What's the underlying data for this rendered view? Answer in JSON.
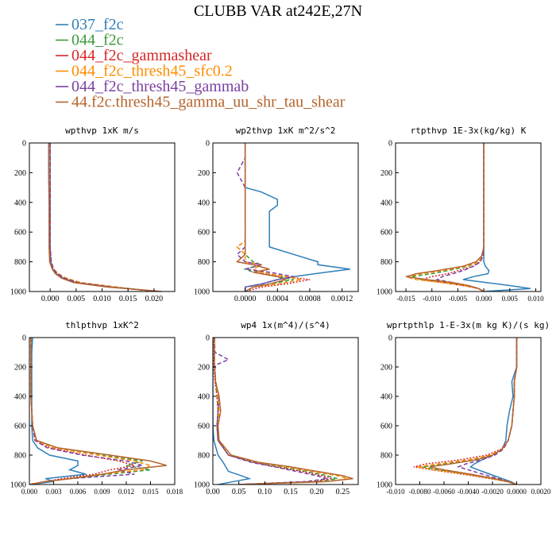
{
  "title": "CLUBB VAR at242E,27N",
  "legend": [
    {
      "label": "037_f2c",
      "color": "#2f7fb8",
      "dash": "solid"
    },
    {
      "label": "044_f2c",
      "color": "#3a9a3a",
      "dash": "dashed"
    },
    {
      "label": "044_f2c_gammashear",
      "color": "#d62728",
      "dash": "dotted"
    },
    {
      "label": "044_f2c_thresh45_sfc0.2",
      "color": "#ff8c00",
      "dash": "dashed"
    },
    {
      "label": "044_f2c_thresh45_gammab",
      "color": "#7b3fa0",
      "dash": "dashed"
    },
    {
      "label": "44.f2c.thresh45_gamma_uu_shr_tau_shear",
      "color": "#b5652e",
      "dash": "solid"
    }
  ],
  "chart_data": [
    {
      "type": "line",
      "title": "wpthvp  1xK m/s",
      "xlim": [
        -0.004,
        0.024
      ],
      "ylim": [
        0,
        1000
      ],
      "xticks": [
        "0.000",
        "0.005",
        "0.010",
        "0.015",
        "0.020"
      ],
      "xtick_values": [
        0,
        0.005,
        0.01,
        0.015,
        0.02
      ],
      "yticks": [
        "0",
        "200",
        "400",
        "600",
        "800",
        "1000"
      ],
      "y": [
        0,
        200,
        400,
        600,
        700,
        800,
        850,
        880,
        910,
        940,
        970,
        1000
      ],
      "series": [
        {
          "values": [
            0.0,
            0.0,
            0.0,
            0.0,
            0.0,
            0.0001,
            0.0005,
            0.0012,
            0.0025,
            0.005,
            0.012,
            0.021
          ]
        },
        {
          "values": [
            0.0,
            0.0,
            0.0,
            0.0,
            0.0,
            0.0002,
            0.0007,
            0.0015,
            0.003,
            0.0058,
            0.0125,
            0.02
          ]
        },
        {
          "values": [
            0.0,
            0.0,
            0.0,
            0.0,
            0.0,
            0.0002,
            0.0006,
            0.0014,
            0.0028,
            0.0055,
            0.012,
            0.0205
          ]
        },
        {
          "values": [
            0.0,
            0.0,
            0.0,
            0.0,
            0.0,
            0.0002,
            0.0007,
            0.0016,
            0.0031,
            0.006,
            0.013,
            0.0195
          ]
        },
        {
          "values": [
            0.0,
            0.0,
            0.0,
            0.0,
            0.0,
            0.0002,
            0.0006,
            0.0014,
            0.0027,
            0.0053,
            0.0118,
            0.0208
          ]
        },
        {
          "values": [
            -0.0003,
            -0.0003,
            -0.0002,
            -0.0002,
            -0.0002,
            -0.0001,
            0.0004,
            0.001,
            0.0022,
            0.0045,
            0.011,
            0.0215
          ]
        }
      ]
    },
    {
      "type": "line",
      "title": "wp2thvp  1xK m^2/s^2",
      "xlim": [
        -0.0004,
        0.0014
      ],
      "ylim": [
        0,
        1000
      ],
      "xticks": [
        "0.0000",
        "0.0004",
        "0.0008",
        "0.0012"
      ],
      "xtick_values": [
        0,
        0.0004,
        0.0008,
        0.0012
      ],
      "yticks": [
        "0",
        "200",
        "400",
        "600",
        "800",
        "1000"
      ],
      "y": [
        0,
        100,
        200,
        300,
        330,
        380,
        420,
        460,
        500,
        540,
        580,
        620,
        660,
        700,
        750,
        800,
        820,
        850,
        870,
        900,
        920,
        950,
        970,
        1000
      ],
      "series": [
        {
          "values": [
            0.0,
            0.0,
            0.0,
            0.0,
            0.0002,
            0.0004,
            0.0004,
            0.0003,
            0.0003,
            0.0003,
            0.0003,
            0.0003,
            0.0003,
            0.0003,
            0.0006,
            0.0009,
            0.0009,
            0.0013,
            0.001,
            0.0006,
            0.0004,
            0.0002,
            0.0,
            0.0
          ]
        },
        {
          "values": [
            0.0,
            0.0,
            0.0,
            0.0,
            0.0,
            0.0,
            0.0,
            0.0,
            0.0,
            0.0,
            0.0,
            0.0,
            0.0,
            -0.0001,
            0.0,
            0.0001,
            0.0002,
            0.0,
            0.0001,
            0.0004,
            0.0006,
            0.0003,
            0.0001,
            0.0
          ]
        },
        {
          "values": [
            0.0,
            0.0,
            0.0,
            0.0,
            0.0,
            0.0,
            0.0,
            0.0,
            0.0,
            0.0,
            0.0,
            0.0,
            0.0,
            0.0,
            0.0,
            -0.0001,
            0.0001,
            0.0003,
            0.0001,
            0.0005,
            0.0008,
            0.0005,
            0.0002,
            0.0
          ]
        },
        {
          "values": [
            0.0,
            0.0,
            0.0,
            0.0,
            0.0,
            0.0,
            0.0,
            0.0,
            0.0,
            0.0,
            0.0,
            0.0,
            0.0,
            -0.0001,
            0.0,
            0.0,
            0.0002,
            0.0001,
            0.0002,
            0.0005,
            0.0007,
            0.0004,
            0.0001,
            0.0
          ]
        },
        {
          "values": [
            0.0,
            0.0,
            -0.0001,
            0.0,
            0.0,
            0.0,
            0.0,
            0.0,
            0.0,
            0.0,
            0.0,
            0.0,
            0.0,
            0.0,
            -0.0001,
            0.0,
            0.0002,
            0.0,
            0.0003,
            0.0006,
            0.0004,
            0.0002,
            0.0,
            0.0
          ]
        },
        {
          "values": [
            0.0,
            0.0,
            0.0,
            0.0,
            0.0,
            0.0,
            0.0,
            0.0,
            0.0,
            0.0,
            0.0,
            0.0,
            0.0,
            0.0,
            0.0,
            -0.0001,
            0.0001,
            0.0003,
            0.0001,
            0.0004,
            0.0005,
            0.0003,
            0.0001,
            0.0
          ]
        }
      ]
    },
    {
      "type": "line",
      "title": "rtpthvp  1E-3x(kg/kg) K",
      "xlim": [
        -0.017,
        0.011
      ],
      "ylim": [
        0,
        1000
      ],
      "xticks": [
        "-0.015",
        "-0.010",
        "-0.005",
        "0.000",
        "0.005",
        "0.010"
      ],
      "xtick_values": [
        -0.015,
        -0.01,
        -0.005,
        0,
        0.005,
        0.01
      ],
      "yticks": [
        "0",
        "200",
        "400",
        "600",
        "800",
        "1000"
      ],
      "y": [
        0,
        200,
        400,
        600,
        700,
        760,
        800,
        830,
        860,
        880,
        900,
        920,
        940,
        960,
        980,
        1000
      ],
      "series": [
        {
          "values": [
            0.0,
            0.0,
            0.0,
            0.0,
            0.0,
            0.0,
            0.0,
            0.0003,
            0.001,
            0.0008,
            -0.002,
            -0.004,
            0.0005,
            0.005,
            0.009,
            0.0
          ]
        },
        {
          "values": [
            0.0,
            0.0,
            0.0,
            0.0,
            0.0,
            -0.0003,
            -0.001,
            -0.003,
            -0.007,
            -0.01,
            -0.014,
            -0.012,
            -0.007,
            -0.003,
            -0.001,
            0.0
          ]
        },
        {
          "values": [
            0.0,
            0.0,
            0.0,
            0.0,
            0.0,
            -0.0002,
            -0.0008,
            -0.002,
            -0.005,
            -0.007,
            -0.01,
            -0.012,
            -0.008,
            -0.004,
            -0.001,
            0.0
          ]
        },
        {
          "values": [
            0.0,
            0.0,
            0.0,
            0.0,
            0.0,
            -0.0003,
            -0.001,
            -0.0035,
            -0.008,
            -0.012,
            -0.015,
            -0.013,
            -0.008,
            -0.004,
            -0.001,
            0.0
          ]
        },
        {
          "values": [
            0.0,
            0.0,
            0.0,
            0.0,
            0.0,
            -0.0002,
            -0.0006,
            -0.002,
            -0.004,
            -0.006,
            -0.008,
            -0.009,
            -0.006,
            -0.003,
            -0.001,
            0.0
          ]
        },
        {
          "values": [
            0.0,
            0.0,
            0.0,
            0.0,
            0.0,
            -0.0004,
            -0.0015,
            -0.004,
            -0.009,
            -0.013,
            -0.015,
            -0.011,
            -0.006,
            -0.003,
            -0.001,
            0.0
          ]
        }
      ]
    },
    {
      "type": "line",
      "title": "thlpthvp  1xK^2",
      "xlim": [
        0,
        0.018
      ],
      "ylim": [
        0,
        1000
      ],
      "xticks": [
        "0.000",
        "0.003",
        "0.006",
        "0.009",
        "0.012",
        "0.015",
        "0.018"
      ],
      "xtick_values": [
        0,
        0.003,
        0.006,
        0.009,
        0.012,
        0.015,
        0.018
      ],
      "yticks": [
        "0",
        "200",
        "400",
        "600",
        "800",
        "1000"
      ],
      "y": [
        0,
        100,
        200,
        300,
        400,
        500,
        600,
        700,
        750,
        800,
        840,
        870,
        900,
        930,
        960,
        980,
        1000
      ],
      "series": [
        {
          "values": [
            0.0004,
            0.0003,
            0.0003,
            0.0003,
            0.0003,
            0.0003,
            0.0003,
            0.0004,
            0.001,
            0.0025,
            0.006,
            0.006,
            0.005,
            0.007,
            0.002,
            0.003,
            0.0
          ]
        },
        {
          "values": [
            0.0002,
            0.0002,
            0.0002,
            0.0002,
            0.0002,
            0.0003,
            0.0004,
            0.0008,
            0.003,
            0.009,
            0.014,
            0.012,
            0.015,
            0.01,
            0.005,
            0.002,
            0.0
          ]
        },
        {
          "values": [
            0.0002,
            0.0002,
            0.0002,
            0.0002,
            0.0002,
            0.0003,
            0.0004,
            0.0007,
            0.0025,
            0.007,
            0.011,
            0.013,
            0.01,
            0.008,
            0.004,
            0.002,
            0.0
          ]
        },
        {
          "values": [
            0.0002,
            0.0002,
            0.0002,
            0.0002,
            0.0002,
            0.0003,
            0.0004,
            0.0008,
            0.003,
            0.0085,
            0.013,
            0.015,
            0.014,
            0.009,
            0.005,
            0.002,
            0.0
          ]
        },
        {
          "values": [
            0.0002,
            0.0002,
            0.0002,
            0.0002,
            0.0002,
            0.0003,
            0.0004,
            0.0007,
            0.0022,
            0.0065,
            0.012,
            0.014,
            0.011,
            0.013,
            0.005,
            0.002,
            0.0
          ]
        },
        {
          "values": [
            0.0002,
            0.0002,
            0.0002,
            0.0002,
            0.0002,
            0.0003,
            0.0004,
            0.0009,
            0.0035,
            0.01,
            0.015,
            0.017,
            0.012,
            0.009,
            0.005,
            0.002,
            0.0
          ]
        }
      ]
    },
    {
      "type": "line",
      "title": "wp4  1x(m^4)/(s^4)",
      "xlim": [
        0,
        0.28
      ],
      "ylim": [
        0,
        1000
      ],
      "xticks": [
        "0.00",
        "0.05",
        "0.10",
        "0.15",
        "0.20",
        "0.25"
      ],
      "xtick_values": [
        0,
        0.05,
        0.1,
        0.15,
        0.2,
        0.25
      ],
      "yticks": [
        "0",
        "200",
        "400",
        "600",
        "800",
        "1000"
      ],
      "y": [
        0,
        100,
        150,
        180,
        200,
        300,
        400,
        500,
        600,
        700,
        800,
        850,
        880,
        910,
        940,
        960,
        980,
        1000
      ],
      "series": [
        {
          "values": [
            0.0,
            0.0,
            0.0,
            0.0,
            0.0,
            0.0,
            0.0,
            0.0,
            0.0,
            0.002,
            0.01,
            0.02,
            0.025,
            0.03,
            0.055,
            0.07,
            0.04,
            0.01
          ]
        },
        {
          "values": [
            0.003,
            0.003,
            0.003,
            0.003,
            0.003,
            0.005,
            0.008,
            0.01,
            0.008,
            0.01,
            0.03,
            0.08,
            0.13,
            0.18,
            0.22,
            0.24,
            0.2,
            0.05
          ]
        },
        {
          "values": [
            0.002,
            0.002,
            0.002,
            0.002,
            0.002,
            0.004,
            0.008,
            0.01,
            0.008,
            0.01,
            0.03,
            0.08,
            0.12,
            0.17,
            0.21,
            0.23,
            0.19,
            0.05
          ]
        },
        {
          "values": [
            0.003,
            0.003,
            0.003,
            0.003,
            0.003,
            0.006,
            0.01,
            0.012,
            0.01,
            0.012,
            0.035,
            0.09,
            0.14,
            0.19,
            0.24,
            0.26,
            0.22,
            0.05
          ]
        },
        {
          "values": [
            0.003,
            0.004,
            0.03,
            0.01,
            0.004,
            0.005,
            0.012,
            0.01,
            0.008,
            0.01,
            0.03,
            0.075,
            0.12,
            0.16,
            0.2,
            0.22,
            0.18,
            0.05
          ]
        },
        {
          "values": [
            0.003,
            0.003,
            0.003,
            0.003,
            0.003,
            0.005,
            0.012,
            0.015,
            0.01,
            0.012,
            0.035,
            0.09,
            0.15,
            0.2,
            0.25,
            0.27,
            0.22,
            0.05
          ]
        }
      ]
    },
    {
      "type": "line",
      "title": "wprtpthlp  1-E-3x(m kg K)/(s kg)",
      "xlim": [
        -0.01,
        0.002
      ],
      "ylim": [
        0,
        1000
      ],
      "xticks": [
        "-0.010",
        "-0.0080",
        "-0.0060",
        "-0.0040",
        "-0.0020",
        "0.0000",
        "0.0020"
      ],
      "xtick_values": [
        -0.01,
        -0.008,
        -0.006,
        -0.004,
        -0.002,
        0,
        0.002
      ],
      "yticks": [
        "0",
        "200",
        "400",
        "600",
        "800",
        "1000"
      ],
      "y": [
        0,
        200,
        300,
        400,
        500,
        600,
        700,
        760,
        800,
        830,
        860,
        880,
        900,
        930,
        960,
        980,
        1000
      ],
      "series": [
        {
          "values": [
            0.0,
            0.0,
            -0.0004,
            -0.0003,
            -0.0006,
            -0.0008,
            -0.0009,
            -0.0012,
            -0.002,
            -0.0028,
            -0.0035,
            -0.0038,
            -0.0032,
            -0.0022,
            -0.0012,
            -0.0005,
            0.0
          ]
        },
        {
          "values": [
            0.0,
            0.0,
            -0.0002,
            -0.0002,
            -0.0003,
            -0.0004,
            -0.0007,
            -0.0012,
            -0.002,
            -0.0035,
            -0.006,
            -0.0078,
            -0.0065,
            -0.004,
            -0.002,
            -0.0008,
            0.0
          ]
        },
        {
          "values": [
            0.0,
            0.0,
            -0.0002,
            -0.0002,
            -0.0003,
            -0.0004,
            -0.0007,
            -0.0013,
            -0.0025,
            -0.0045,
            -0.0075,
            -0.0085,
            -0.007,
            -0.0045,
            -0.0022,
            -0.0008,
            0.0
          ]
        },
        {
          "values": [
            0.0,
            0.0,
            -0.0002,
            -0.0002,
            -0.0003,
            -0.0004,
            -0.0007,
            -0.0012,
            -0.0022,
            -0.0038,
            -0.0065,
            -0.0082,
            -0.0068,
            -0.0042,
            -0.002,
            -0.0008,
            0.0
          ]
        },
        {
          "values": [
            0.0,
            0.0,
            -0.0002,
            -0.0002,
            -0.0003,
            -0.0004,
            -0.0007,
            -0.0011,
            -0.0018,
            -0.0028,
            -0.0042,
            -0.0048,
            -0.004,
            -0.0028,
            -0.0015,
            -0.0006,
            0.0
          ]
        },
        {
          "values": [
            0.0,
            0.0,
            -0.0002,
            -0.0002,
            -0.0003,
            -0.0004,
            -0.0007,
            -0.0012,
            -0.002,
            -0.0032,
            -0.0055,
            -0.0072,
            -0.006,
            -0.0038,
            -0.0018,
            -0.0007,
            0.0
          ]
        }
      ]
    }
  ]
}
